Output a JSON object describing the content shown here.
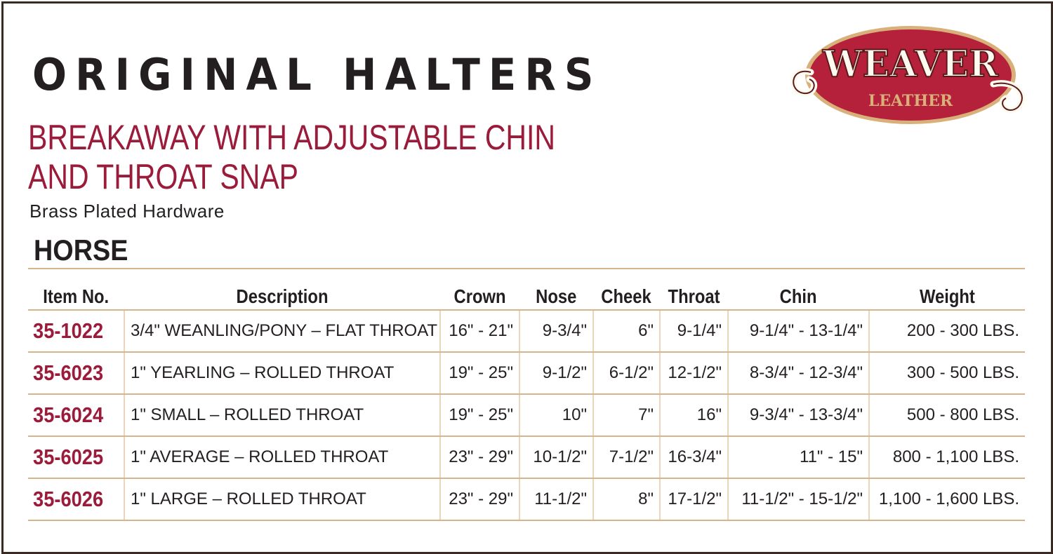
{
  "title": "ORIGINAL HALTERS",
  "subtitle_line1": "BREAKAWAY WITH ADJUSTABLE CHIN",
  "subtitle_line2": "AND THROAT SNAP",
  "hardware": "Brass Plated Hardware",
  "section": "HORSE",
  "logo": {
    "main": "WEAVER",
    "sub": "LEATHER",
    "colors": {
      "red": "#b5203a",
      "cream": "#fffaf0",
      "tan": "#d9b07a"
    }
  },
  "colors": {
    "accent": "#9b1b3a",
    "rule": "#d6b48c"
  },
  "table": {
    "headers": [
      "Item No.",
      "Description",
      "Crown",
      "Nose",
      "Cheek",
      "Throat",
      "Chin",
      "Weight"
    ],
    "rows": [
      [
        "35-1022",
        "3/4\" WEANLING/PONY – FLAT THROAT",
        "16\" - 21\"",
        "9-3/4\"",
        "6\"",
        "9-1/4\"",
        "9-1/4\" - 13-1/4\"",
        "200 - 300 LBS."
      ],
      [
        "35-6023",
        "1\" YEARLING – ROLLED THROAT",
        "19\" - 25\"",
        "9-1/2\"",
        "6-1/2\"",
        "12-1/2\"",
        "8-3/4\" - 12-3/4\"",
        "300 - 500 LBS."
      ],
      [
        "35-6024",
        "1\" SMALL – ROLLED THROAT",
        "19\" - 25\"",
        "10\"",
        "7\"",
        "16\"",
        "9-3/4\" - 13-3/4\"",
        "500 - 800 LBS."
      ],
      [
        "35-6025",
        "1\" AVERAGE – ROLLED THROAT",
        "23\" - 29\"",
        "10-1/2\"",
        "7-1/2\"",
        "16-3/4\"",
        "11\" - 15\"",
        "800 - 1,100 LBS."
      ],
      [
        "35-6026",
        "1\" LARGE – ROLLED THROAT",
        "23\" - 29\"",
        "11-1/2\"",
        "8\"",
        "17-1/2\"",
        "11-1/2\" - 15-1/2\"",
        "1,100 - 1,600 LBS."
      ]
    ]
  }
}
